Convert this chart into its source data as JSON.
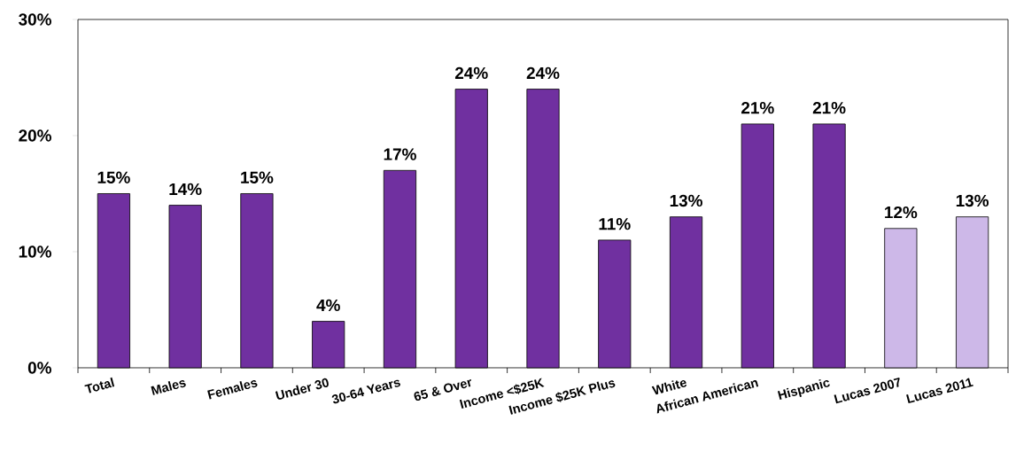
{
  "chart_data": {
    "type": "bar",
    "categories": [
      "Total",
      "Males",
      "Females",
      "Under 30",
      "30-64 Years",
      "65 & Over",
      "Income <$25K",
      "Income $25K Plus",
      "White",
      "African American",
      "Hispanic",
      "Lucas 2007",
      "Lucas 2011"
    ],
    "values": [
      15,
      14,
      15,
      4,
      17,
      24,
      24,
      11,
      13,
      21,
      21,
      12,
      13
    ],
    "value_labels": [
      "15%",
      "14%",
      "15%",
      "4%",
      "17%",
      "24%",
      "24%",
      "11%",
      "13%",
      "21%",
      "21%",
      "12%",
      "13%"
    ],
    "colors": [
      "#7030a0",
      "#7030a0",
      "#7030a0",
      "#7030a0",
      "#7030a0",
      "#7030a0",
      "#7030a0",
      "#7030a0",
      "#7030a0",
      "#7030a0",
      "#7030a0",
      "#cdb8e8",
      "#cdb8e8"
    ],
    "ylim": [
      0,
      30
    ],
    "yticks": [
      {
        "value": 0,
        "label": "0%"
      },
      {
        "value": 10,
        "label": "10%"
      },
      {
        "value": 20,
        "label": "20%"
      },
      {
        "value": 30,
        "label": "30%"
      }
    ]
  }
}
